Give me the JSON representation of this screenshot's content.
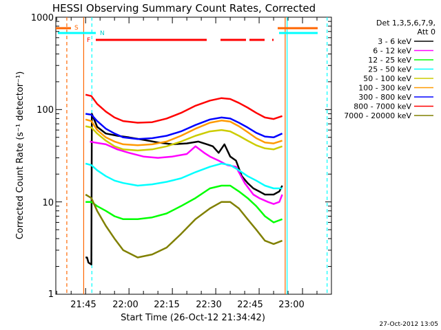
{
  "chart_data": {
    "type": "line",
    "title": "HESSI Observing Summary Count Rates, Corrected",
    "xlabel": "Start Time (26-Oct-12 21:34:42)",
    "ylabel": "Corrected Count Rate (s⁻¹ detector⁻¹)",
    "yscale": "log",
    "ylim": [
      1,
      1000
    ],
    "xlim": [
      "21:34:42",
      "23:10:00"
    ],
    "x_tick_labels": [
      "21:45",
      "22:00",
      "22:15",
      "22:30",
      "22:45",
      "23:00"
    ],
    "y_tick_labels": [
      "1",
      "10",
      "100",
      "1000"
    ],
    "legend_header": [
      "Det 1,3,5,6,7,9,",
      "Att 0"
    ],
    "legend_position": "right, outside plot",
    "footer_timestamp": "27-Oct-2012 13:05",
    "flag_labels": {
      "s": "S",
      "n": "N",
      "f": "F"
    },
    "series": [
      {
        "name": "3 - 6 keV",
        "color": "#000000",
        "points": [
          [
            "21:45:00",
            2.5
          ],
          [
            "21:45:30",
            2.5
          ],
          [
            "21:46:00",
            2.2
          ],
          [
            "21:47:00",
            2.1
          ],
          [
            "21:47:10",
            90
          ],
          [
            "21:49:00",
            65
          ],
          [
            "21:52:00",
            55
          ],
          [
            "21:56:00",
            52
          ],
          [
            "22:00:00",
            50
          ],
          [
            "22:05:00",
            47
          ],
          [
            "22:10:00",
            44
          ],
          [
            "22:15:00",
            42
          ],
          [
            "22:20:00",
            43
          ],
          [
            "22:24:00",
            45
          ],
          [
            "22:27:00",
            42
          ],
          [
            "22:29:00",
            40
          ],
          [
            "22:31:00",
            34
          ],
          [
            "22:33:00",
            42
          ],
          [
            "22:35:00",
            31
          ],
          [
            "22:37:00",
            28
          ],
          [
            "22:39:00",
            19
          ],
          [
            "22:41:00",
            16
          ],
          [
            "22:43:00",
            14
          ],
          [
            "22:45:00",
            13
          ],
          [
            "22:47:00",
            12
          ],
          [
            "22:50:00",
            12
          ],
          [
            "22:52:00",
            13
          ],
          [
            "22:53:00",
            15
          ]
        ]
      },
      {
        "name": "6 - 12 keV",
        "color": "#ff00ff",
        "points": [
          [
            "21:46:30",
            45
          ],
          [
            "21:48:00",
            44
          ],
          [
            "21:52:00",
            42
          ],
          [
            "21:56:00",
            37
          ],
          [
            "22:00:00",
            34
          ],
          [
            "22:05:00",
            31
          ],
          [
            "22:10:00",
            30
          ],
          [
            "22:15:00",
            31
          ],
          [
            "22:20:00",
            33
          ],
          [
            "22:23:00",
            40
          ],
          [
            "22:26:00",
            34
          ],
          [
            "22:28:00",
            31
          ],
          [
            "22:31:00",
            28
          ],
          [
            "22:34:00",
            25
          ],
          [
            "22:37:00",
            24
          ],
          [
            "22:40:00",
            16
          ],
          [
            "22:43:00",
            12
          ],
          [
            "22:45:00",
            11
          ],
          [
            "22:48:00",
            10
          ],
          [
            "22:50:00",
            9.5
          ],
          [
            "22:52:00",
            10
          ],
          [
            "22:53:00",
            12
          ]
        ]
      },
      {
        "name": "12 - 25 keV",
        "color": "#00ff00",
        "points": [
          [
            "21:45:00",
            10
          ],
          [
            "21:47:00",
            10
          ],
          [
            "21:49:00",
            9
          ],
          [
            "21:52:00",
            8
          ],
          [
            "21:55:00",
            7
          ],
          [
            "21:58:00",
            6.5
          ],
          [
            "22:03:00",
            6.5
          ],
          [
            "22:08:00",
            6.8
          ],
          [
            "22:13:00",
            7.5
          ],
          [
            "22:18:00",
            9
          ],
          [
            "22:23:00",
            11
          ],
          [
            "22:28:00",
            14
          ],
          [
            "22:32:00",
            15
          ],
          [
            "22:35:00",
            15
          ],
          [
            "22:38:00",
            13
          ],
          [
            "22:41:00",
            11
          ],
          [
            "22:44:00",
            9
          ],
          [
            "22:47:00",
            7
          ],
          [
            "22:50:00",
            6
          ],
          [
            "22:53:00",
            6.5
          ]
        ]
      },
      {
        "name": "25 - 50 keV",
        "color": "#00ffff",
        "points": [
          [
            "21:45:00",
            26
          ],
          [
            "21:47:00",
            25
          ],
          [
            "21:49:00",
            22
          ],
          [
            "21:52:00",
            19
          ],
          [
            "21:55:00",
            17
          ],
          [
            "21:58:00",
            16
          ],
          [
            "22:03:00",
            15
          ],
          [
            "22:08:00",
            15.5
          ],
          [
            "22:13:00",
            16.5
          ],
          [
            "22:18:00",
            18
          ],
          [
            "22:23:00",
            21
          ],
          [
            "22:28:00",
            24
          ],
          [
            "22:32:00",
            26
          ],
          [
            "22:35:00",
            25
          ],
          [
            "22:38:00",
            22
          ],
          [
            "22:41:00",
            19
          ],
          [
            "22:44:00",
            17
          ],
          [
            "22:47:00",
            15
          ],
          [
            "22:50:00",
            14
          ],
          [
            "22:53:00",
            14
          ]
        ]
      },
      {
        "name": "50 - 100 keV",
        "color": "#cccc00",
        "points": [
          [
            "21:45:00",
            66
          ],
          [
            "21:47:00",
            64
          ],
          [
            "21:49:00",
            55
          ],
          [
            "21:52:00",
            46
          ],
          [
            "21:55:00",
            40
          ],
          [
            "21:58:00",
            37
          ],
          [
            "22:03:00",
            36
          ],
          [
            "22:08:00",
            37
          ],
          [
            "22:13:00",
            40
          ],
          [
            "22:18:00",
            45
          ],
          [
            "22:23:00",
            52
          ],
          [
            "22:28:00",
            58
          ],
          [
            "22:32:00",
            60
          ],
          [
            "22:35:00",
            58
          ],
          [
            "22:38:00",
            52
          ],
          [
            "22:41:00",
            46
          ],
          [
            "22:44:00",
            41
          ],
          [
            "22:47:00",
            38
          ],
          [
            "22:50:00",
            37
          ],
          [
            "22:53:00",
            40
          ]
        ]
      },
      {
        "name": "100 - 300 keV",
        "color": "#ff9900",
        "points": [
          [
            "21:45:00",
            78
          ],
          [
            "21:47:00",
            75
          ],
          [
            "21:49:00",
            60
          ],
          [
            "21:52:00",
            50
          ],
          [
            "21:55:00",
            45
          ],
          [
            "21:58:00",
            42
          ],
          [
            "22:03:00",
            41
          ],
          [
            "22:08:00",
            42
          ],
          [
            "22:13:00",
            45
          ],
          [
            "22:18:00",
            52
          ],
          [
            "22:23:00",
            62
          ],
          [
            "22:28:00",
            72
          ],
          [
            "22:32:00",
            76
          ],
          [
            "22:35:00",
            74
          ],
          [
            "22:38:00",
            66
          ],
          [
            "22:41:00",
            57
          ],
          [
            "22:44:00",
            49
          ],
          [
            "22:47:00",
            44
          ],
          [
            "22:50:00",
            43
          ],
          [
            "22:53:00",
            46
          ]
        ]
      },
      {
        "name": "300 - 800 keV",
        "color": "#0000ff",
        "points": [
          [
            "21:45:00",
            90
          ],
          [
            "21:47:00",
            88
          ],
          [
            "21:49:00",
            75
          ],
          [
            "21:52:00",
            62
          ],
          [
            "21:55:00",
            55
          ],
          [
            "21:58:00",
            50
          ],
          [
            "22:03:00",
            48
          ],
          [
            "22:08:00",
            49
          ],
          [
            "22:13:00",
            52
          ],
          [
            "22:18:00",
            58
          ],
          [
            "22:23:00",
            68
          ],
          [
            "22:28:00",
            78
          ],
          [
            "22:32:00",
            82
          ],
          [
            "22:35:00",
            80
          ],
          [
            "22:38:00",
            72
          ],
          [
            "22:41:00",
            64
          ],
          [
            "22:44:00",
            56
          ],
          [
            "22:47:00",
            51
          ],
          [
            "22:50:00",
            50
          ],
          [
            "22:53:00",
            55
          ]
        ]
      },
      {
        "name": "800 - 7000 keV",
        "color": "#ff0000",
        "points": [
          [
            "21:45:00",
            145
          ],
          [
            "21:47:00",
            140
          ],
          [
            "21:49:00",
            115
          ],
          [
            "21:52:00",
            95
          ],
          [
            "21:55:00",
            82
          ],
          [
            "21:58:00",
            75
          ],
          [
            "22:03:00",
            72
          ],
          [
            "22:08:00",
            73
          ],
          [
            "22:13:00",
            80
          ],
          [
            "22:18:00",
            92
          ],
          [
            "22:23:00",
            110
          ],
          [
            "22:28:00",
            125
          ],
          [
            "22:32:00",
            133
          ],
          [
            "22:35:00",
            130
          ],
          [
            "22:38:00",
            118
          ],
          [
            "22:41:00",
            105
          ],
          [
            "22:44:00",
            92
          ],
          [
            "22:47:00",
            82
          ],
          [
            "22:50:00",
            79
          ],
          [
            "22:53:00",
            85
          ]
        ]
      },
      {
        "name": "7000 - 20000 keV",
        "color": "#808000",
        "points": [
          [
            "21:45:00",
            12
          ],
          [
            "21:47:00",
            11
          ],
          [
            "21:49:00",
            8
          ],
          [
            "21:52:00",
            5.5
          ],
          [
            "21:55:00",
            4
          ],
          [
            "21:58:00",
            3
          ],
          [
            "22:03:00",
            2.5
          ],
          [
            "22:08:00",
            2.7
          ],
          [
            "22:13:00",
            3.2
          ],
          [
            "22:18:00",
            4.5
          ],
          [
            "22:23:00",
            6.5
          ],
          [
            "22:28:00",
            8.5
          ],
          [
            "22:32:00",
            10
          ],
          [
            "22:35:00",
            10
          ],
          [
            "22:38:00",
            8.5
          ],
          [
            "22:41:00",
            6.5
          ],
          [
            "22:44:00",
            5
          ],
          [
            "22:47:00",
            3.8
          ],
          [
            "22:50:00",
            3.5
          ],
          [
            "22:53:00",
            3.8
          ]
        ]
      }
    ],
    "vertical_markers": [
      {
        "time": "21:38:30",
        "style": "dashed",
        "color": "#ff6600"
      },
      {
        "time": "21:44:20",
        "style": "solid",
        "color": "#ff6600"
      },
      {
        "time": "21:47:10",
        "style": "dashed",
        "color": "#00ffff"
      },
      {
        "time": "22:54:00",
        "style": "solid",
        "color": "#ff6600"
      },
      {
        "time": "22:54:40",
        "style": "solid",
        "color": "#00ffff"
      },
      {
        "time": "23:08:30",
        "style": "dashed",
        "color": "#00ffff"
      }
    ]
  }
}
